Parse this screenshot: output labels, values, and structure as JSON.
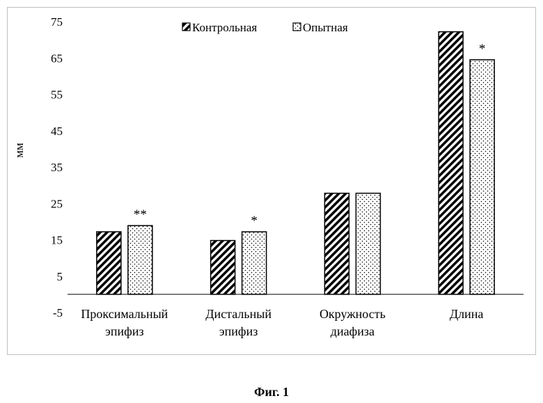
{
  "chart_data": {
    "type": "bar",
    "ylabel": "мм",
    "ylim": [
      -5,
      75
    ],
    "yticks": [
      -5,
      5,
      15,
      25,
      35,
      45,
      55,
      65,
      75
    ],
    "grid": false,
    "legend_position": "top",
    "categories": [
      [
        "Проксимальный",
        "эпифиз"
      ],
      [
        "Дистальный",
        "эпифиз"
      ],
      [
        "Окружность",
        "диафиза"
      ],
      [
        "Длина"
      ]
    ],
    "series": [
      {
        "name": "Контрольная",
        "pattern": "hatch",
        "values": [
          17.2,
          14.8,
          27.8,
          72.2
        ]
      },
      {
        "name": "Опытная",
        "pattern": "dots",
        "values": [
          18.9,
          17.2,
          27.8,
          64.5
        ]
      }
    ],
    "annotations": [
      {
        "category": 0,
        "series": 1,
        "text": "**"
      },
      {
        "category": 1,
        "series": 1,
        "text": "*"
      },
      {
        "category": 3,
        "series": 1,
        "text": "*"
      }
    ]
  },
  "caption": "Фиг. 1",
  "colors": {
    "bar_stroke": "#000000",
    "axis": "#000000",
    "frame": "#bfbfbf"
  }
}
